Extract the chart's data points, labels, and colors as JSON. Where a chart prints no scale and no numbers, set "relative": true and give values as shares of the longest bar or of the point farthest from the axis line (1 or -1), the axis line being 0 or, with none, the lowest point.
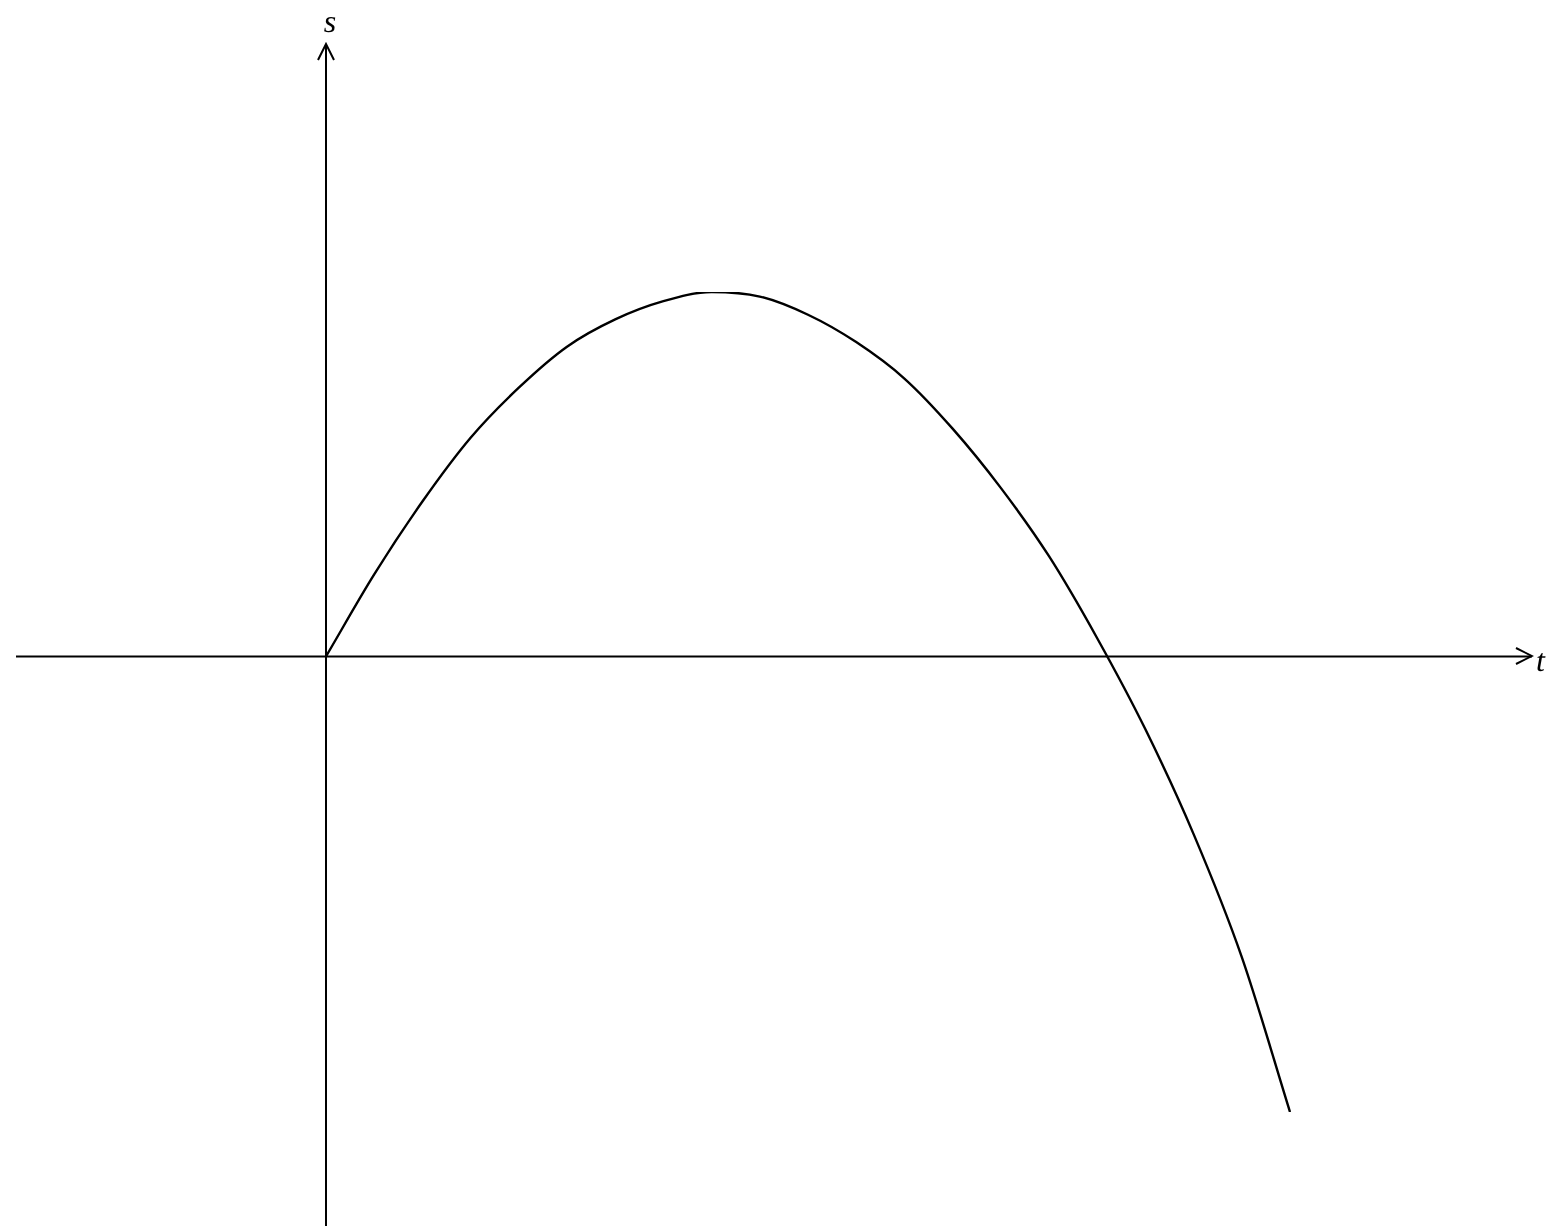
{
  "chart_data": {
    "type": "line",
    "relative": true,
    "annotations": [
      "s",
      "t"
    ],
    "categories": [
      null,
      null,
      null,
      null,
      null,
      null,
      null,
      null,
      null,
      null,
      null,
      null,
      null,
      null,
      null,
      null,
      null,
      null,
      null,
      null,
      null
    ],
    "series": [
      {
        "color": "#000000",
        "values": [
          0,
          0.18,
          0.34,
          0.48,
          0.59,
          0.68,
          0.74,
          0.78,
          0.8,
          0.79,
          0.75,
          0.69,
          0.61,
          0.5,
          0.37,
          0.22,
          0.04,
          -0.16,
          -0.39,
          -0.66,
          -1
        ]
      }
    ],
    "legend": false,
    "tick_labels": false,
    "marker": "none",
    "line_style": "solid"
  }
}
